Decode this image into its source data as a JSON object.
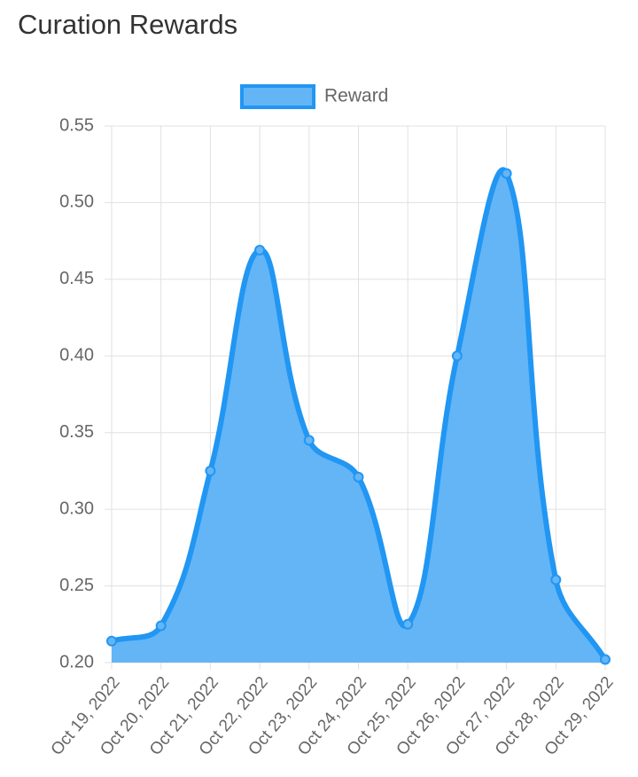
{
  "chart_data": {
    "type": "line",
    "title": "Curation Rewards",
    "categories": [
      "Oct 19, 2022",
      "Oct 20, 2022",
      "Oct 21, 2022",
      "Oct 22, 2022",
      "Oct 23, 2022",
      "Oct 24, 2022",
      "Oct 25, 2022",
      "Oct 26, 2022",
      "Oct 27, 2022",
      "Oct 28, 2022",
      "Oct 29, 2022"
    ],
    "series": [
      {
        "name": "Reward",
        "color": "#2196f3",
        "fill": "#64b5f6",
        "values": [
          0.214,
          0.224,
          0.325,
          0.469,
          0.345,
          0.321,
          0.225,
          0.4,
          0.519,
          0.254,
          0.202
        ]
      }
    ],
    "ylim": [
      0.2,
      0.55
    ],
    "yticks": [
      {
        "value": 0.2,
        "label": "0.20"
      },
      0.25,
      {
        "value": 0.3,
        "label": "0.30"
      },
      0.35,
      {
        "value": 0.4,
        "label": "0.40"
      },
      0.45,
      {
        "value": 0.5,
        "label": "0.50"
      },
      0.55
    ],
    "grid": true,
    "legend": "top"
  }
}
